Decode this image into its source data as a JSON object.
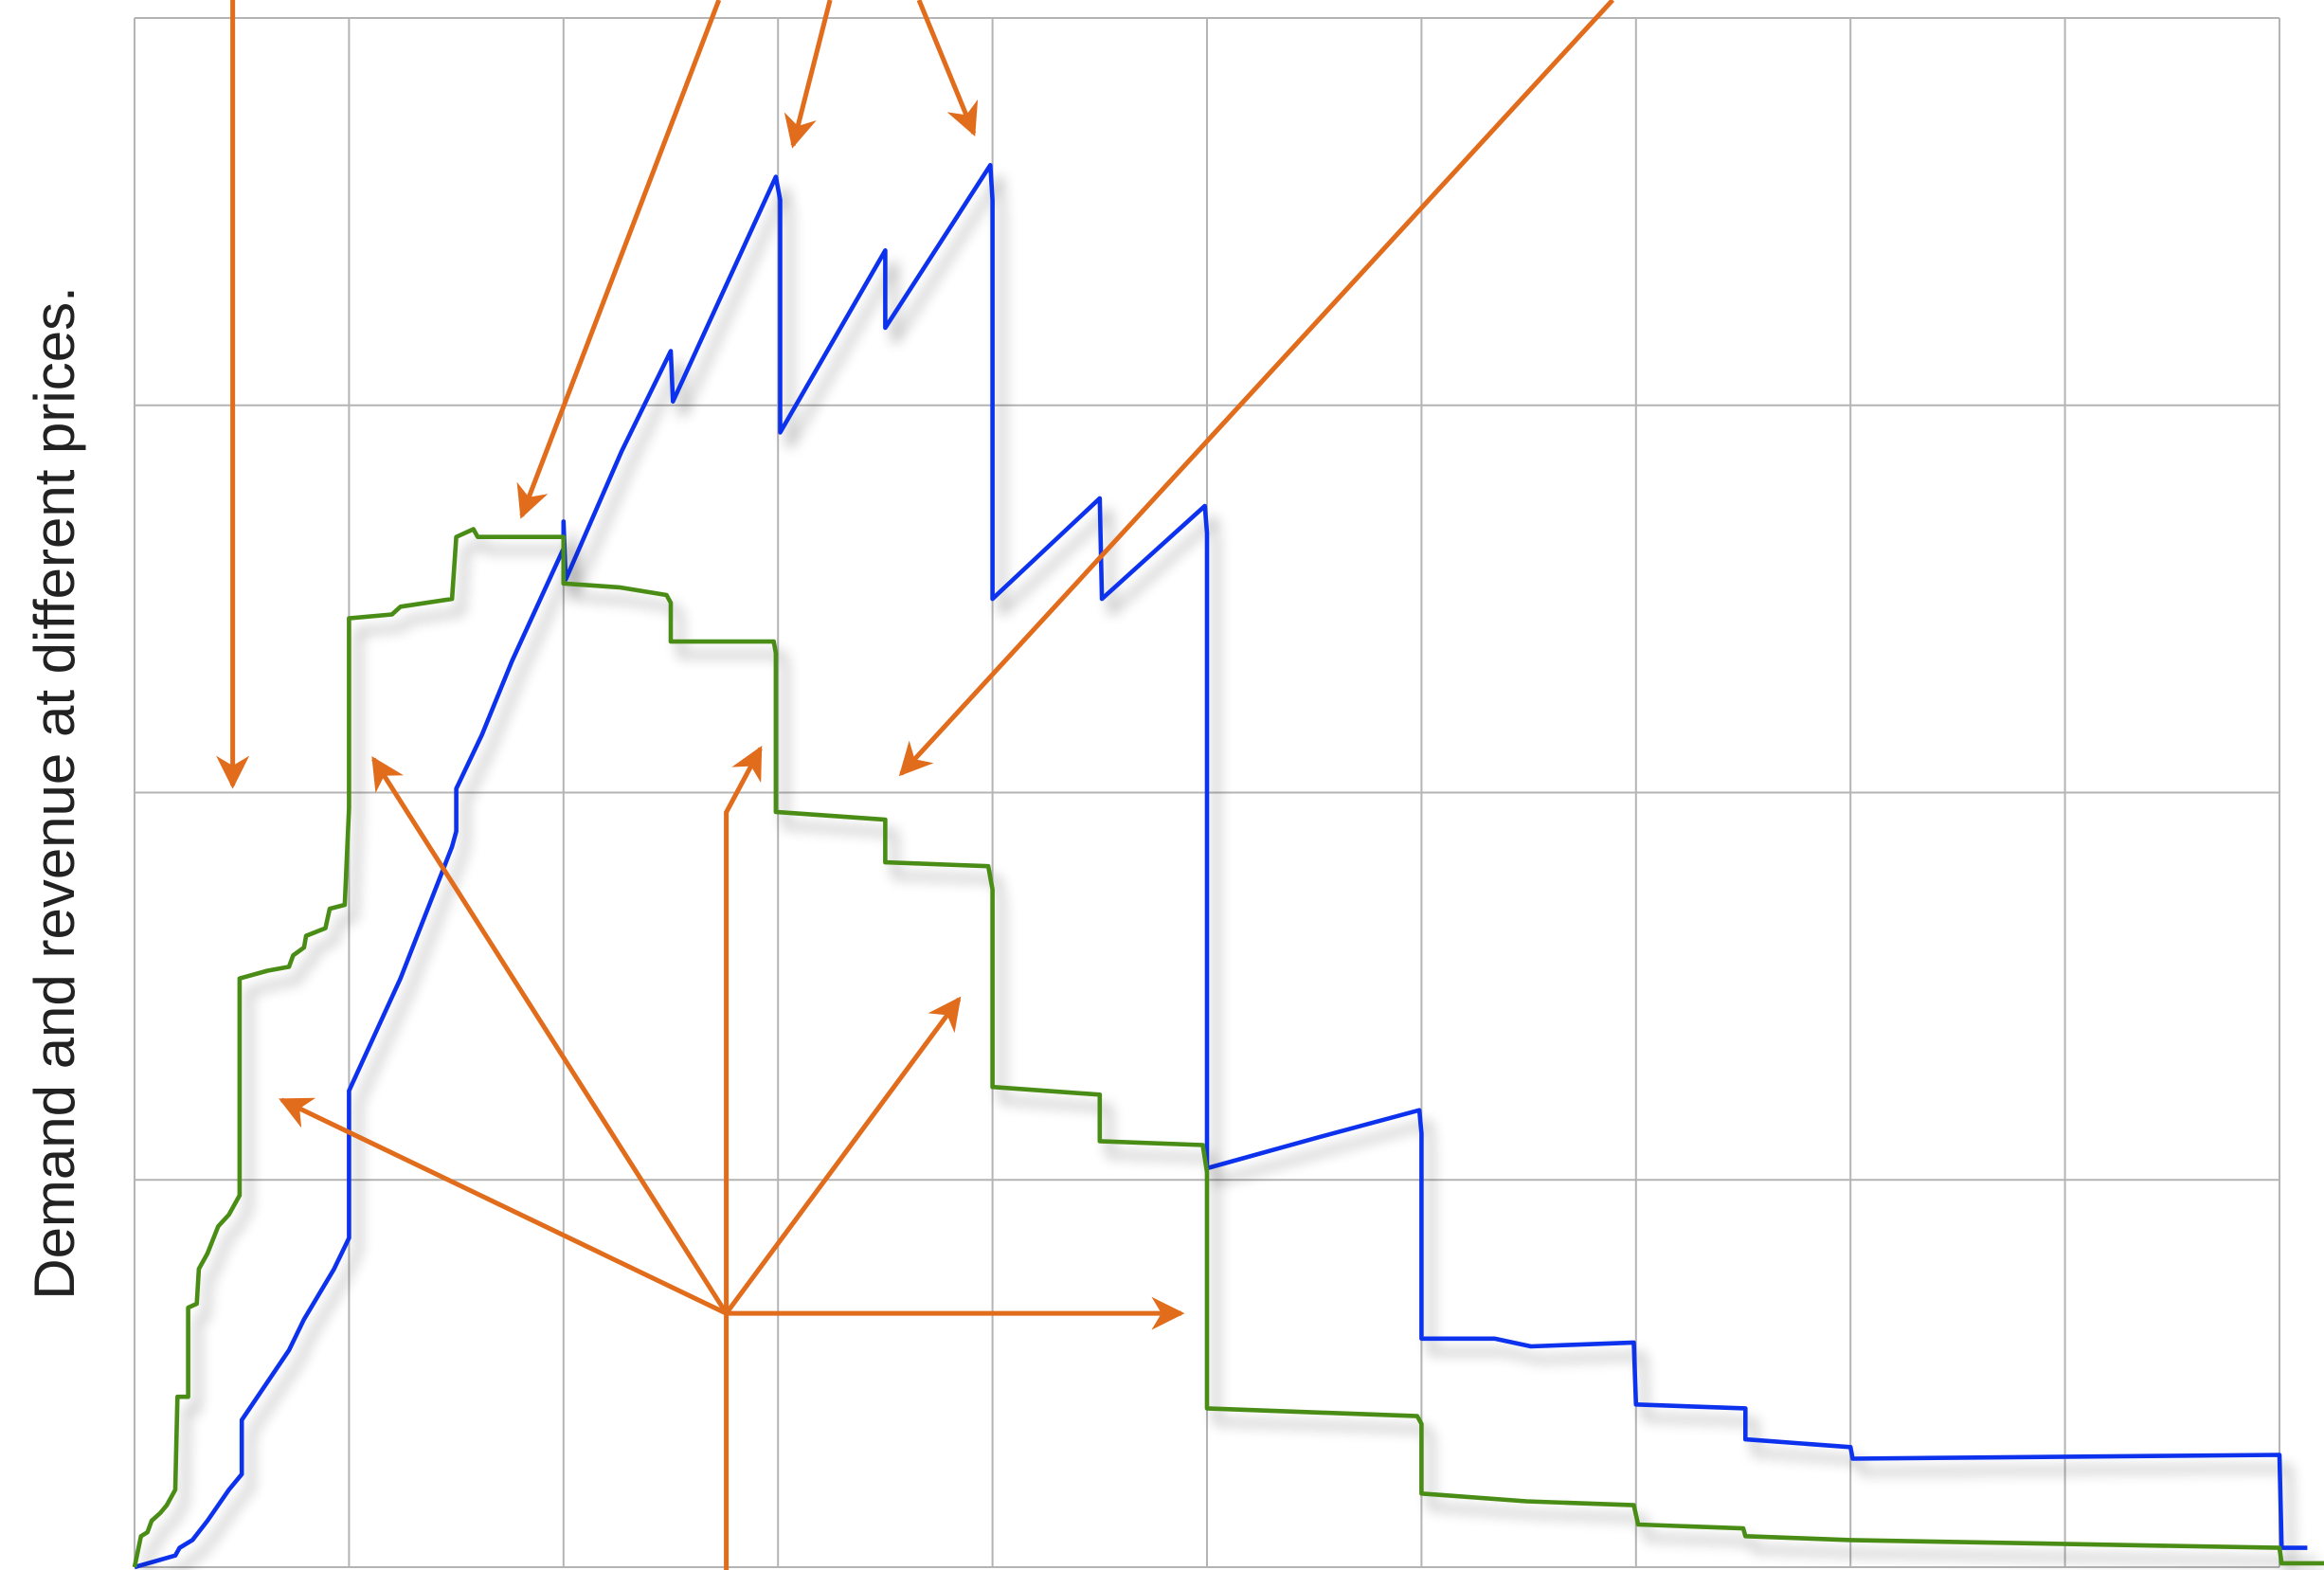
{
  "chart_data": {
    "type": "line",
    "ylabel": "Demand and revenue at different prices.",
    "xlim": [
      0,
      10
    ],
    "ylim": [
      0,
      4
    ],
    "xticks": [
      0,
      1,
      2,
      3,
      4,
      5,
      6,
      7,
      8,
      9,
      10
    ],
    "yticks": [
      0,
      1,
      2,
      3,
      4
    ],
    "grid": true,
    "series": [
      {
        "color": "#1133ee",
        "x": [
          0,
          0.19,
          0.21,
          0.27,
          0.34,
          0.44,
          0.5,
          0.5,
          0.72,
          0.79,
          0.93,
          1.0,
          1.0,
          1.0,
          1.24,
          1.48,
          1.5,
          1.5,
          1.62,
          1.76,
          2.0,
          2.0,
          2.01,
          2.27,
          2.5,
          2.51,
          2.99,
          3.01,
          3.01,
          3.5,
          3.5,
          3.99,
          4.0,
          4.0,
          4.5,
          4.51,
          4.99,
          5.0,
          5.0,
          5.52,
          5.99,
          6.0,
          6.0,
          6.34,
          6.51,
          6.99,
          7.0,
          7.51,
          7.51,
          8.0,
          8.01,
          10.0,
          10.01,
          10.13
        ],
        "values": [
          0,
          0.03,
          0.05,
          0.07,
          0.12,
          0.2,
          0.24,
          0.38,
          0.56,
          0.64,
          0.77,
          0.85,
          0.98,
          1.23,
          1.52,
          1.86,
          1.9,
          2.01,
          2.15,
          2.34,
          2.63,
          2.7,
          2.55,
          2.88,
          3.14,
          3.01,
          3.59,
          3.53,
          2.93,
          3.4,
          3.2,
          3.62,
          3.53,
          2.5,
          2.76,
          2.5,
          2.74,
          2.67,
          1.03,
          1.11,
          1.18,
          1.12,
          0.59,
          0.59,
          0.57,
          0.58,
          0.42,
          0.41,
          0.33,
          0.31,
          0.28,
          0.29,
          0.05,
          0.05
        ]
      },
      {
        "color": "#4a8c12",
        "x": [
          0,
          0.03,
          0.06,
          0.08,
          0.12,
          0.15,
          0.19,
          0.2,
          0.25,
          0.25,
          0.29,
          0.3,
          0.34,
          0.39,
          0.44,
          0.49,
          0.49,
          0.62,
          0.72,
          0.74,
          0.79,
          0.8,
          0.89,
          0.91,
          0.98,
          1.0,
          1.0,
          1.2,
          1.24,
          1.48,
          1.5,
          1.58,
          1.6,
          1.76,
          2.0,
          2.0,
          2.26,
          2.48,
          2.5,
          2.5,
          2.98,
          2.99,
          2.99,
          3.5,
          3.5,
          3.98,
          4.0,
          4.0,
          4.5,
          4.5,
          4.98,
          5.0,
          5.0,
          5.98,
          6.0,
          6.0,
          6.49,
          6.99,
          7.01,
          7.5,
          7.51,
          8.0,
          10.0,
          10.01,
          10.21
        ],
        "values": [
          0,
          0.08,
          0.09,
          0.12,
          0.14,
          0.16,
          0.2,
          0.44,
          0.44,
          0.67,
          0.68,
          0.77,
          0.81,
          0.88,
          0.91,
          0.96,
          1.52,
          1.54,
          1.55,
          1.58,
          1.6,
          1.63,
          1.65,
          1.7,
          1.71,
          1.96,
          2.45,
          2.46,
          2.48,
          2.5,
          2.66,
          2.68,
          2.66,
          2.66,
          2.66,
          2.54,
          2.53,
          2.51,
          2.49,
          2.39,
          2.39,
          2.36,
          1.95,
          1.93,
          1.82,
          1.81,
          1.75,
          1.24,
          1.22,
          1.1,
          1.09,
          1.02,
          0.41,
          0.39,
          0.37,
          0.19,
          0.17,
          0.16,
          0.11,
          0.1,
          0.08,
          0.07,
          0.05,
          0.01,
          0.01
        ]
      }
    ]
  }
}
